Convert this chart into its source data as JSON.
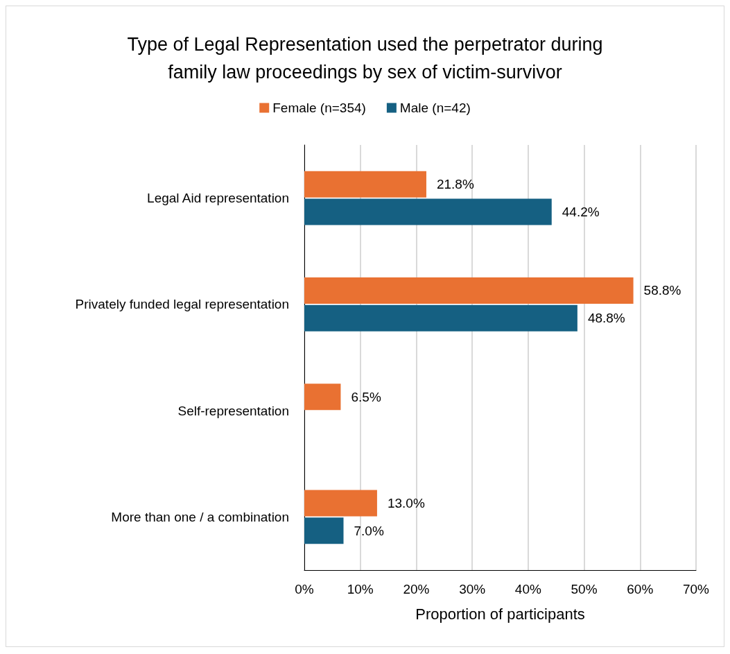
{
  "chart_data": {
    "type": "bar",
    "orientation": "horizontal",
    "title": "Type of Legal Representation used the perpetrator during\nfamily law proceedings by sex of victim-survivor",
    "xlabel": "Proportion of participants",
    "categories": [
      "Legal Aid representation",
      "Privately funded legal representation",
      "Self-representation",
      "More than one / a combination"
    ],
    "series": [
      {
        "name": "Female (n=354)",
        "color": "#e97132",
        "values": [
          21.8,
          58.8,
          6.5,
          13.0
        ],
        "value_labels": [
          "21.8%",
          "58.8%",
          "6.5%",
          "13.0%"
        ]
      },
      {
        "name": "Male (n=42)",
        "color": "#156082",
        "values": [
          44.2,
          48.8,
          null,
          7.0
        ],
        "value_labels": [
          "44.2%",
          "48.8%",
          null,
          "7.0%"
        ]
      }
    ],
    "xlim": [
      0,
      70
    ],
    "xticks": [
      {
        "value": 0,
        "label": "0%"
      },
      {
        "value": 10,
        "label": "10%"
      },
      {
        "value": 20,
        "label": "20%"
      },
      {
        "value": 30,
        "label": "30%"
      },
      {
        "value": 40,
        "label": "40%"
      },
      {
        "value": 50,
        "label": "50%"
      },
      {
        "value": 60,
        "label": "60%"
      },
      {
        "value": 70,
        "label": "70%"
      }
    ],
    "grid": "x",
    "legend": "top"
  }
}
